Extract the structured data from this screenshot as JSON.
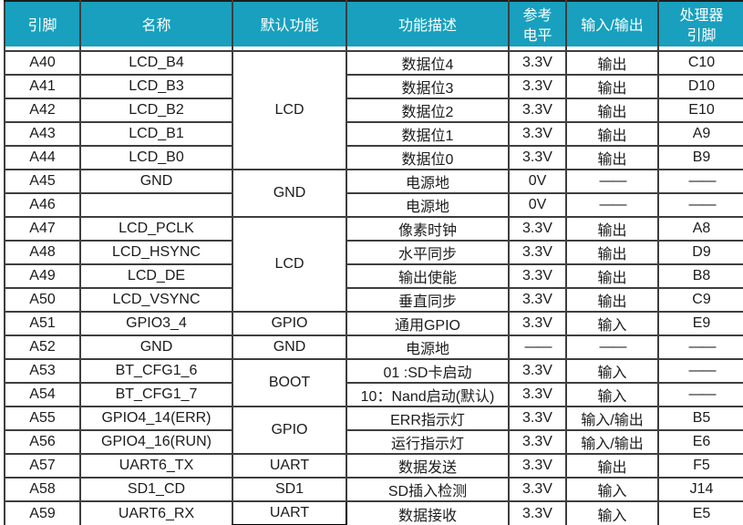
{
  "table": {
    "headers": [
      {
        "id": "pin",
        "label": "引脚"
      },
      {
        "id": "name",
        "label": "名称"
      },
      {
        "id": "func",
        "label": "默认功能"
      },
      {
        "id": "desc",
        "label": "功能描述"
      },
      {
        "id": "level",
        "label": "参考\n电平"
      },
      {
        "id": "io",
        "label": "输入/输出"
      },
      {
        "id": "proc",
        "label": "处理器\n引脚"
      }
    ],
    "rows": [
      {
        "pin": "A40",
        "name": "LCD_B4",
        "func": "LCD",
        "func_span": 5,
        "desc": "数据位4",
        "level": "3.3V",
        "io": "输出",
        "proc": "C10"
      },
      {
        "pin": "A41",
        "name": "LCD_B3",
        "desc": "数据位3",
        "level": "3.3V",
        "io": "输出",
        "proc": "D10"
      },
      {
        "pin": "A42",
        "name": "LCD_B2",
        "desc": "数据位2",
        "level": "3.3V",
        "io": "输出",
        "proc": "E10"
      },
      {
        "pin": "A43",
        "name": "LCD_B1",
        "desc": "数据位1",
        "level": "3.3V",
        "io": "输出",
        "proc": "A9"
      },
      {
        "pin": "A44",
        "name": "LCD_B0",
        "desc": "数据位0",
        "level": "3.3V",
        "io": "输出",
        "proc": "B9"
      },
      {
        "pin": "A45",
        "name": "GND",
        "func": "GND",
        "func_span": 2,
        "desc": "电源地",
        "level": "0V",
        "io": "——",
        "proc": "——"
      },
      {
        "pin": "A46",
        "name": "",
        "desc": "电源地",
        "level": "0V",
        "io": "——",
        "proc": "——"
      },
      {
        "pin": "A47",
        "name": "LCD_PCLK",
        "func": "LCD",
        "func_span": 4,
        "desc": "像素时钟",
        "level": "3.3V",
        "io": "输出",
        "proc": "A8"
      },
      {
        "pin": "A48",
        "name": "LCD_HSYNC",
        "desc": "水平同步",
        "level": "3.3V",
        "io": "输出",
        "proc": "D9"
      },
      {
        "pin": "A49",
        "name": "LCD_DE",
        "desc": "输出使能",
        "level": "3.3V",
        "io": "输出",
        "proc": "B8"
      },
      {
        "pin": "A50",
        "name": "LCD_VSYNC",
        "desc": "垂直同步",
        "level": "3.3V",
        "io": "输出",
        "proc": "C9"
      },
      {
        "pin": "A51",
        "name": "GPIO3_4",
        "func": "GPIO",
        "func_span": 1,
        "desc": "通用GPIO",
        "level": "3.3V",
        "io": "输入",
        "proc": "E9"
      },
      {
        "pin": "A52",
        "name": "GND",
        "func": "GND",
        "func_span": 1,
        "desc": "电源地",
        "level": "——",
        "io": "——",
        "proc": "——"
      },
      {
        "pin": "A53",
        "name": "BT_CFG1_6",
        "func": "BOOT",
        "func_span": 2,
        "desc": "01 :SD卡启动",
        "level": "3.3V",
        "io": "输入",
        "proc": "——"
      },
      {
        "pin": "A54",
        "name": "BT_CFG1_7",
        "desc": "10：Nand启动(默认)",
        "level": "3.3V",
        "io": "输入",
        "proc": "——"
      },
      {
        "pin": "A55",
        "name": "GPIO4_14(ERR)",
        "func": "GPIO",
        "func_span": 2,
        "desc": "ERR指示灯",
        "level": "3.3V",
        "io": "输入/输出",
        "proc": "B5"
      },
      {
        "pin": "A56",
        "name": "GPIO4_16(RUN)",
        "desc": "运行指示灯",
        "level": "3.3V",
        "io": "输入/输出",
        "proc": "E6"
      },
      {
        "pin": "A57",
        "name": "UART6_TX",
        "func": "UART",
        "func_span": 1,
        "desc": "数据发送",
        "level": "3.3V",
        "io": "输出",
        "proc": "F5"
      },
      {
        "pin": "A58",
        "name": "SD1_CD",
        "func": "SD1",
        "func_span": 1,
        "desc": "SD插入检测",
        "level": "3.3V",
        "io": "输入",
        "proc": "J14"
      },
      {
        "pin": "A59",
        "name": "UART6_RX",
        "func": "UART",
        "func_span": 1,
        "selected": true,
        "desc": "数据接收",
        "level": "3.3V",
        "io": "输入",
        "proc": "E5"
      }
    ]
  },
  "colors": {
    "header_bg": "#18A0BE",
    "header_text": "#FFFFFF",
    "border": "#3E3E3E",
    "cell_bg": "#FFFFFF",
    "text": "#1B1B1B",
    "selection_border": "#000000"
  }
}
